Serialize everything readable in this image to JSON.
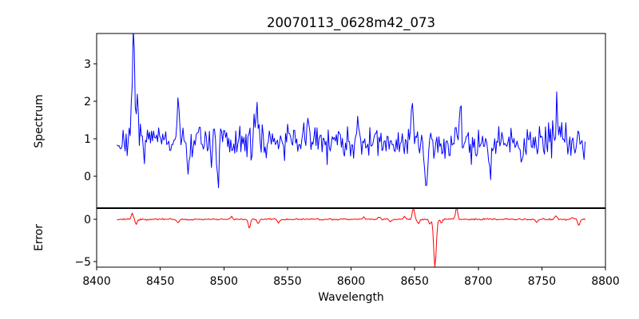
{
  "chart_data": {
    "type": "line",
    "title": "20070113_0628m42_073",
    "xlabel": "Wavelength",
    "grid": false,
    "legend": "none",
    "background_color": "#ffffff",
    "axis_color": "#000000",
    "xlim": [
      8400,
      8800
    ],
    "xticks": [
      8400,
      8450,
      8500,
      8550,
      8600,
      8650,
      8700,
      8750,
      8800
    ],
    "x_start": 8416,
    "x_end": 8784,
    "n_points": 462,
    "panels": [
      {
        "name": "spectrum",
        "ylabel": "Spectrum",
        "yticks": [
          0,
          1,
          2,
          3
        ],
        "ylim": [
          -0.85,
          3.81
        ],
        "color": "#0000ff",
        "baseline": 0.93,
        "noise_sigma": 0.21,
        "spike_prob": 0.05,
        "spike_scale": 0.5,
        "seed": 7,
        "features": [
          {
            "x": 8429,
            "amp": 2.75,
            "w": 1.0
          },
          {
            "x": 8432,
            "amp": 0.9,
            "w": 0.8
          },
          {
            "x": 8464,
            "amp": 1.2,
            "w": 0.9
          },
          {
            "x": 8472,
            "amp": -0.8,
            "w": 0.9
          },
          {
            "x": 8495,
            "amp": -0.85,
            "w": 0.9
          },
          {
            "x": 8526,
            "amp": 1.05,
            "w": 0.9
          },
          {
            "x": 8566,
            "amp": 0.6,
            "w": 0.9
          },
          {
            "x": 8605,
            "amp": 0.55,
            "w": 0.9
          },
          {
            "x": 8648,
            "amp": 0.95,
            "w": 0.9
          },
          {
            "x": 8659,
            "amp": -1.5,
            "w": 1.0
          },
          {
            "x": 8686,
            "amp": 0.85,
            "w": 0.9
          },
          {
            "x": 8709,
            "amp": -0.85,
            "w": 0.9
          },
          {
            "x": 8734,
            "amp": -0.8,
            "w": 0.9
          },
          {
            "x": 8762,
            "amp": 1.05,
            "w": 0.9
          }
        ]
      },
      {
        "name": "error",
        "ylabel": "Error",
        "yticks": [
          -5,
          0
        ],
        "ylim": [
          -5.66,
          1.32
        ],
        "color": "#ff0000",
        "baseline": 0.0,
        "noise_sigma": 0.045,
        "spike_prob": 0.02,
        "spike_scale": 0.18,
        "seed": 3,
        "features": [
          {
            "x": 8428,
            "amp": 0.65,
            "w": 0.8
          },
          {
            "x": 8431,
            "amp": -0.6,
            "w": 0.8
          },
          {
            "x": 8464,
            "amp": -0.5,
            "w": 0.8
          },
          {
            "x": 8506,
            "amp": 0.3,
            "w": 0.8
          },
          {
            "x": 8520,
            "amp": -1.1,
            "w": 0.8
          },
          {
            "x": 8527,
            "amp": -0.5,
            "w": 0.8
          },
          {
            "x": 8543,
            "amp": -0.4,
            "w": 0.8
          },
          {
            "x": 8610,
            "amp": 0.25,
            "w": 0.8
          },
          {
            "x": 8622,
            "amp": 0.3,
            "w": 0.8
          },
          {
            "x": 8631,
            "amp": -0.3,
            "w": 0.8
          },
          {
            "x": 8642,
            "amp": 0.35,
            "w": 0.8
          },
          {
            "x": 8649,
            "amp": 1.4,
            "w": 0.8
          },
          {
            "x": 8653,
            "amp": -0.5,
            "w": 0.8
          },
          {
            "x": 8662,
            "amp": -0.65,
            "w": 0.8
          },
          {
            "x": 8666,
            "amp": -5.65,
            "w": 1.0
          },
          {
            "x": 8671,
            "amp": -0.4,
            "w": 0.8
          },
          {
            "x": 8683,
            "amp": 1.4,
            "w": 0.8
          },
          {
            "x": 8746,
            "amp": -0.4,
            "w": 0.8
          },
          {
            "x": 8761,
            "amp": 0.45,
            "w": 0.8
          },
          {
            "x": 8774,
            "amp": 0.3,
            "w": 0.8
          },
          {
            "x": 8779,
            "amp": -0.75,
            "w": 0.8
          }
        ]
      }
    ]
  }
}
